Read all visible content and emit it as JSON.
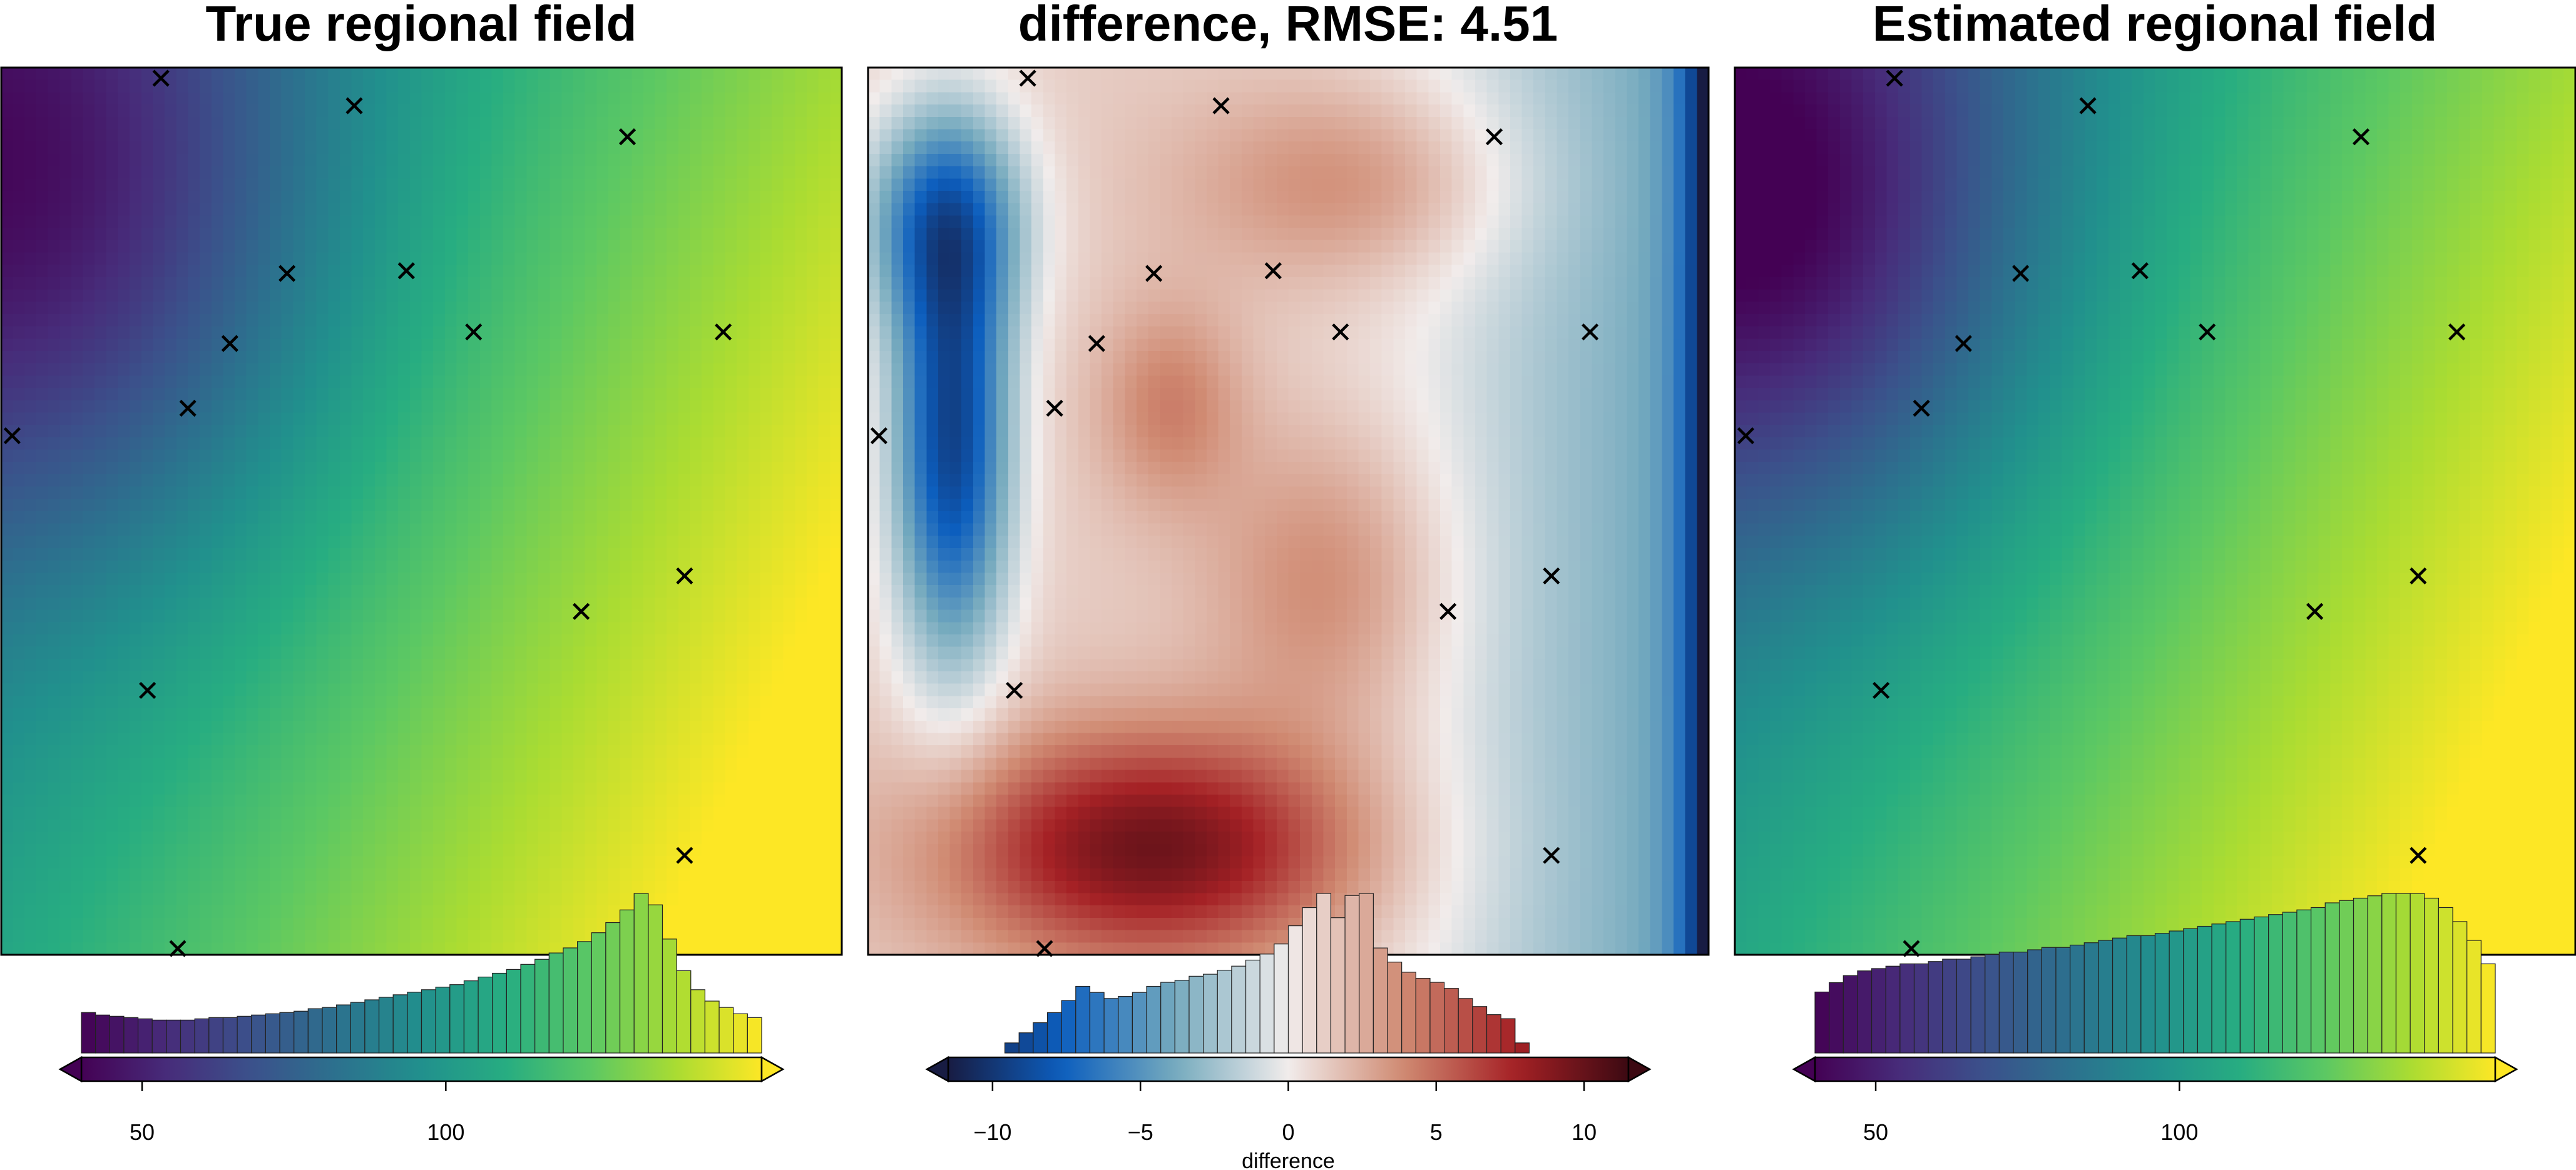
{
  "colors": {
    "viridis": [
      "#440154",
      "#472c7a",
      "#3b518b",
      "#2c718e",
      "#21908d",
      "#27ad81",
      "#5cc863",
      "#aadc32",
      "#fde725"
    ],
    "balance": [
      "#181c43",
      "#0c5ebe",
      "#75aabe",
      "#f1eceb",
      "#d08b73",
      "#a52125",
      "#3c0912"
    ],
    "marker": "#000000"
  },
  "chart_data": [
    {
      "type": "heatmap",
      "title": "True regional field",
      "colormap": "viridis",
      "clim": [
        40,
        152
      ],
      "colorbar": {
        "ticks": [
          50,
          100
        ],
        "tick_labels": [
          "50",
          "100"
        ],
        "label": "",
        "triangle_low_color": "#440154",
        "triangle_high_color": "#fde725",
        "histogram_counts": [
          3.2,
          3.0,
          2.9,
          2.8,
          2.7,
          2.6,
          2.6,
          2.6,
          2.7,
          2.8,
          2.8,
          2.9,
          3.0,
          3.1,
          3.2,
          3.3,
          3.5,
          3.6,
          3.8,
          4.0,
          4.2,
          4.4,
          4.6,
          4.8,
          5.0,
          5.2,
          5.4,
          5.7,
          6.0,
          6.3,
          6.6,
          7.0,
          7.4,
          7.9,
          8.3,
          8.8,
          9.5,
          10.3,
          11.3,
          12.6,
          11.7,
          9.0,
          6.5,
          5.0,
          4.1,
          3.6,
          3.1,
          2.8
        ]
      }
    },
    {
      "type": "heatmap",
      "title": "difference, RMSE: 4.51",
      "colormap": "balance",
      "clim": [
        -11.5,
        11.5
      ],
      "colorbar": {
        "ticks": [
          -10,
          -5,
          0,
          5,
          10
        ],
        "tick_labels": [
          "−10",
          "−5",
          "0",
          "5",
          "10"
        ],
        "label": "difference",
        "triangle_low_color": "#181c43",
        "triangle_high_color": "#3c0912",
        "histogram_counts": [
          0,
          0,
          0,
          0,
          0.5,
          1.0,
          1.5,
          2.0,
          2.6,
          3.3,
          3.0,
          2.7,
          2.8,
          3.0,
          3.3,
          3.5,
          3.6,
          3.8,
          3.9,
          4.1,
          4.3,
          4.6,
          4.9,
          5.4,
          6.3,
          7.2,
          7.9,
          6.7,
          7.8,
          7.9,
          5.2,
          4.5,
          4.0,
          3.7,
          3.5,
          3.2,
          2.7,
          2.3,
          1.9,
          1.7,
          0.5,
          0,
          0,
          0,
          0,
          0,
          0,
          0
        ]
      }
    },
    {
      "type": "heatmap",
      "title": "Estimated regional field",
      "colormap": "viridis",
      "clim": [
        40,
        152
      ],
      "colorbar": {
        "ticks": [
          50,
          100
        ],
        "tick_labels": [
          "50",
          "100"
        ],
        "label": "",
        "triangle_low_color": "#440154",
        "triangle_high_color": "#fde725",
        "histogram_counts": [
          2.6,
          3.0,
          3.3,
          3.5,
          3.6,
          3.7,
          3.8,
          3.8,
          3.9,
          4.0,
          4.0,
          4.1,
          4.2,
          4.3,
          4.3,
          4.4,
          4.5,
          4.5,
          4.6,
          4.7,
          4.8,
          4.9,
          5.0,
          5.0,
          5.1,
          5.2,
          5.3,
          5.4,
          5.5,
          5.6,
          5.7,
          5.8,
          5.9,
          6.0,
          6.1,
          6.2,
          6.4,
          6.5,
          6.6,
          6.7,
          6.8,
          6.8,
          6.8,
          6.6,
          6.2,
          5.6,
          4.8,
          3.8
        ]
      }
    }
  ],
  "constraint_points": {
    "marker": "x",
    "points": [
      [
        0.19,
        0.012
      ],
      [
        0.42,
        0.043
      ],
      [
        0.745,
        0.078
      ],
      [
        0.34,
        0.232
      ],
      [
        0.482,
        0.229
      ],
      [
        0.272,
        0.311
      ],
      [
        0.562,
        0.298
      ],
      [
        0.859,
        0.298
      ],
      [
        0.222,
        0.384
      ],
      [
        0.013,
        0.415
      ],
      [
        0.813,
        0.573
      ],
      [
        0.69,
        0.613
      ],
      [
        0.174,
        0.702
      ],
      [
        0.813,
        0.888
      ],
      [
        0.21,
        0.993
      ]
    ]
  }
}
